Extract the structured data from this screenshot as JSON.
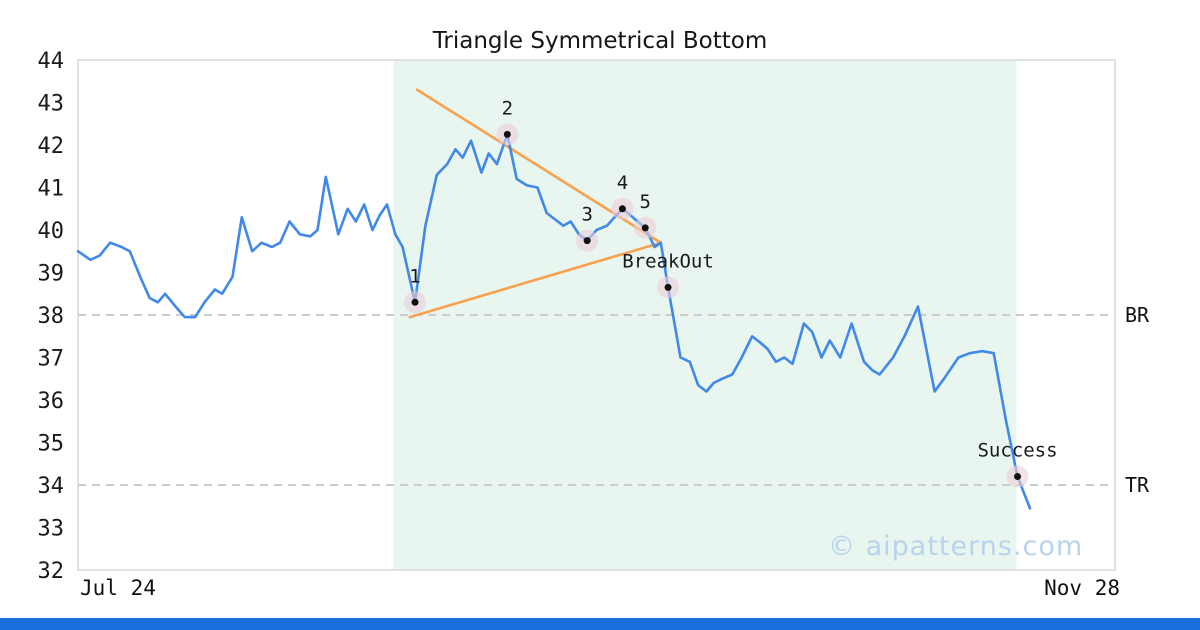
{
  "watermark": "© aipatterns.com",
  "colors": {
    "price_line": "#4189e8",
    "trendline": "#f9a14e",
    "zone": "#e9f5ef",
    "dashed": "#cccccc",
    "border": "#d9d9d9",
    "axis_text": "#1a1a1a",
    "marker_halo": "#eBCfd8",
    "marker_dot": "#111111",
    "watermark": "#b9d2ee",
    "bottom_bar": "#1b6ede"
  },
  "chart_data": {
    "type": "line",
    "title": "Triangle Symmetrical Bottom",
    "x_axis": {
      "start_label": "Jul 24",
      "end_label": "Nov 28"
    },
    "y_axis": {
      "min": 32,
      "max": 44,
      "tick_step": 1,
      "ticks": [
        44,
        43,
        42,
        41,
        40,
        39,
        38,
        37,
        36,
        35,
        34,
        33,
        32
      ]
    },
    "reference_lines": [
      {
        "label": "BR",
        "value": 38
      },
      {
        "label": "TR",
        "value": 34
      }
    ],
    "pattern_zone": {
      "x_start": 0.304,
      "x_end": 0.905
    },
    "series": {
      "name": "price",
      "x": [
        0,
        0.012,
        0.021,
        0.031,
        0.042,
        0.05,
        0.06,
        0.069,
        0.077,
        0.084,
        0.094,
        0.103,
        0.113,
        0.122,
        0.132,
        0.139,
        0.149,
        0.158,
        0.168,
        0.177,
        0.187,
        0.195,
        0.204,
        0.214,
        0.224,
        0.231,
        0.239,
        0.251,
        0.26,
        0.268,
        0.276,
        0.284,
        0.291,
        0.298,
        0.306,
        0.313,
        0.325,
        0.335,
        0.346,
        0.356,
        0.364,
        0.371,
        0.379,
        0.389,
        0.396,
        0.404,
        0.414,
        0.423,
        0.433,
        0.443,
        0.452,
        0.46,
        0.468,
        0.475,
        0.483,
        0.491,
        0.5,
        0.51,
        0.525,
        0.535,
        0.547,
        0.556,
        0.562,
        0.569,
        0.581,
        0.59,
        0.598,
        0.606,
        0.613,
        0.621,
        0.631,
        0.64,
        0.65,
        0.658,
        0.665,
        0.673,
        0.681,
        0.689,
        0.7,
        0.708,
        0.717,
        0.725,
        0.735,
        0.746,
        0.758,
        0.766,
        0.773,
        0.786,
        0.797,
        0.81,
        0.826,
        0.835,
        0.849,
        0.86,
        0.872,
        0.883,
        0.895,
        0.906,
        0.918
      ],
      "y": [
        39.5,
        39.3,
        39.4,
        39.7,
        39.6,
        39.5,
        38.9,
        38.4,
        38.3,
        38.5,
        38.2,
        37.95,
        37.95,
        38.3,
        38.6,
        38.5,
        38.9,
        40.3,
        39.5,
        39.7,
        39.6,
        39.7,
        40.2,
        39.9,
        39.85,
        40.0,
        41.25,
        39.9,
        40.5,
        40.2,
        40.6,
        40.0,
        40.35,
        40.6,
        39.9,
        39.6,
        38.3,
        40.1,
        41.3,
        41.55,
        41.9,
        41.7,
        42.1,
        41.35,
        41.8,
        41.55,
        42.25,
        41.2,
        41.05,
        41.0,
        40.4,
        40.25,
        40.1,
        40.2,
        39.9,
        39.75,
        40.0,
        40.1,
        40.5,
        40.3,
        40.05,
        39.6,
        39.7,
        38.65,
        37.0,
        36.9,
        36.35,
        36.2,
        36.4,
        36.5,
        36.6,
        37.0,
        37.5,
        37.35,
        37.2,
        36.9,
        37.0,
        36.85,
        37.8,
        37.6,
        37.0,
        37.4,
        37.0,
        37.8,
        36.9,
        36.7,
        36.6,
        37.0,
        37.5,
        38.2,
        36.2,
        36.5,
        37.0,
        37.1,
        37.15,
        37.1,
        35.5,
        34.2,
        33.45
      ]
    },
    "trendlines": [
      {
        "name": "upper",
        "x1": 0.327,
        "price1": 43.3,
        "x2": 0.562,
        "price2": 39.7
      },
      {
        "name": "lower",
        "x1": 0.32,
        "price1": 37.95,
        "x2": 0.562,
        "price2": 39.7
      }
    ],
    "markers": [
      {
        "label": "1",
        "x": 0.325,
        "price": 38.3
      },
      {
        "label": "2",
        "x": 0.414,
        "price": 42.25
      },
      {
        "label": "3",
        "x": 0.491,
        "price": 39.75
      },
      {
        "label": "4",
        "x": 0.525,
        "price": 40.5
      },
      {
        "label": "5",
        "x": 0.547,
        "price": 40.05
      },
      {
        "label": "BreakOut",
        "x": 0.569,
        "price": 38.65
      },
      {
        "label": "Success",
        "x": 0.906,
        "price": 34.2
      }
    ]
  }
}
